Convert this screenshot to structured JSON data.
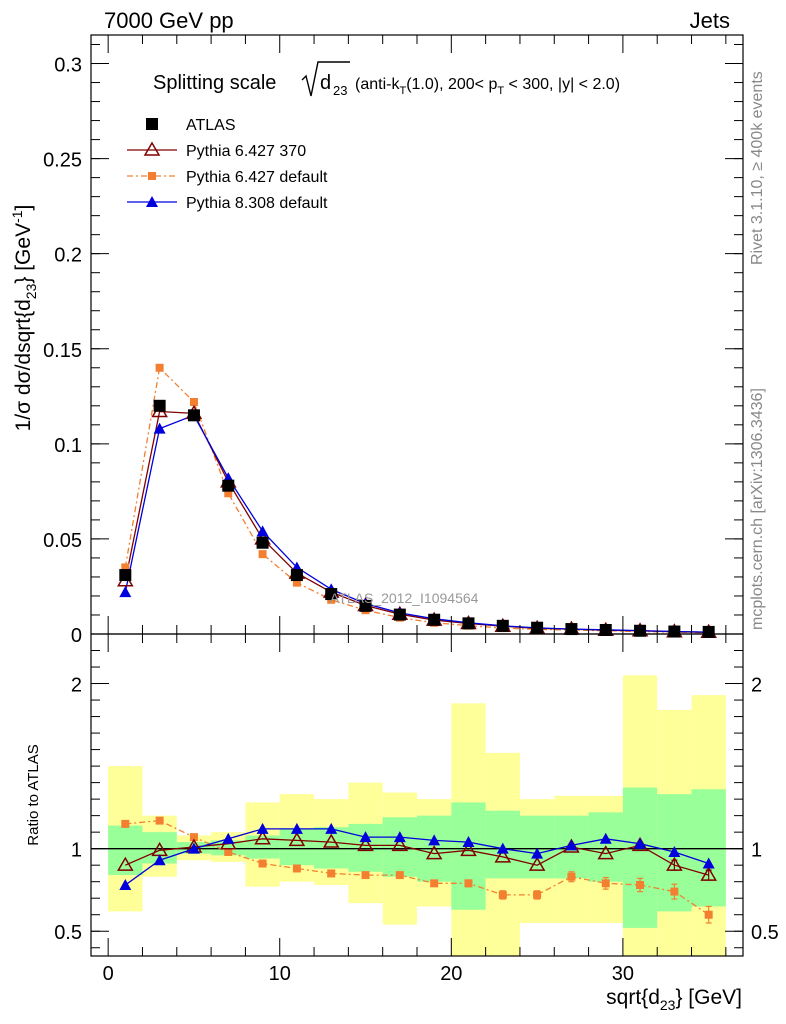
{
  "header": {
    "left": "7000 GeV pp",
    "right": "Jets"
  },
  "side_labels": {
    "rivet": "Rivet 3.1.10, ≥ 400k events",
    "mcplots": "mcplots.cern.ch [arXiv:1306.3436]"
  },
  "chart_data": [
    {
      "type": "scatter",
      "panel": "main",
      "title": "Splitting scale √d23 (anti-kT(1.0), 200< pT < 300, |y| < 2.0)",
      "title_prefix": "Splitting scale",
      "title_sqrt_arg": "d",
      "title_sqrt_sub": "23",
      "title_rest_1": "(anti-k",
      "title_rest_sub": "T",
      "title_rest_2": "(1.0), 200< p",
      "title_rest_sub2": "T",
      "title_rest_3": " < 300, |y| < 2.0)",
      "ylabel": "1/σ dσ/dsqrt{d23} [GeV⁻¹]",
      "ylabel_main": "1/σ dσ/dsqrt{d",
      "ylabel_sub": "23",
      "ylabel_end": "} [GeV",
      "ylabel_sup": "-1",
      "ylabel_close": "]",
      "watermark": "ATLAS_2012_I1094564",
      "xlim": [
        -1,
        37
      ],
      "ylim": [
        0,
        0.315
      ],
      "yticks": [
        0,
        0.05,
        0.1,
        0.15,
        0.2,
        0.25,
        0.3
      ],
      "ytick_labels": [
        "0",
        "0.05",
        "0.1",
        "0.15",
        "0.2",
        "0.25",
        "0.3"
      ],
      "x": [
        1,
        3,
        5,
        7,
        9,
        11,
        13,
        15,
        17,
        19,
        21,
        23,
        25,
        27,
        29,
        31,
        33,
        35
      ],
      "legend_position": "top-left",
      "series": [
        {
          "name": "ATLAS",
          "marker": "filled-square",
          "color": "#000000",
          "values": [
            0.031,
            0.12,
            0.115,
            0.078,
            0.048,
            0.031,
            0.021,
            0.0148,
            0.0102,
            0.0075,
            0.0056,
            0.0043,
            0.0033,
            0.0026,
            0.0021,
            0.0017,
            0.0013,
            0.0011
          ]
        },
        {
          "name": "Pythia 6.427 370",
          "marker": "open-triangle",
          "color": "#7f0000",
          "values": [
            0.028,
            0.117,
            0.116,
            0.08,
            0.05,
            0.032,
            0.022,
            0.015,
            0.0104,
            0.0073,
            0.0055,
            0.0041,
            0.003,
            0.0026,
            0.002,
            0.0017,
            0.0012,
            0.0009
          ]
        },
        {
          "name": "Pythia 6.427 default",
          "marker": "small-square",
          "color": "#f28030",
          "values": [
            0.035,
            0.14,
            0.122,
            0.074,
            0.042,
            0.027,
            0.018,
            0.0125,
            0.0086,
            0.0059,
            0.0044,
            0.0031,
            0.0024,
            0.0021,
            0.0017,
            0.0013,
            0.001,
            0.0007
          ]
        },
        {
          "name": "Pythia 8.308 default",
          "marker": "filled-triangle",
          "color": "#0000dd",
          "values": [
            0.022,
            0.108,
            0.115,
            0.082,
            0.054,
            0.035,
            0.0235,
            0.016,
            0.0111,
            0.008,
            0.0059,
            0.0043,
            0.0032,
            0.0026,
            0.0022,
            0.0018,
            0.0013,
            0.001
          ]
        }
      ]
    },
    {
      "type": "scatter",
      "panel": "ratio",
      "ylabel": "Ratio to ATLAS",
      "xlabel": "sqrt{d23} [GeV]",
      "xlabel_main": "sqrt{d",
      "xlabel_sub": "23",
      "xlabel_end": "} [GeV]",
      "xlim": [
        -1,
        37
      ],
      "ylim": [
        0.35,
        2.3
      ],
      "xticks": [
        0,
        10,
        20,
        30
      ],
      "xtick_labels": [
        "0",
        "10",
        "20",
        "30"
      ],
      "yticks": [
        0.5,
        1,
        2
      ],
      "ytick_labels": [
        "0.5",
        "1",
        "2"
      ],
      "bins": [
        {
          "lo": 0,
          "hi": 2,
          "green": [
            0.84,
            1.14
          ],
          "yellow": [
            0.62,
            1.5
          ]
        },
        {
          "lo": 2,
          "hi": 4,
          "green": [
            0.91,
            1.1
          ],
          "yellow": [
            0.83,
            1.2
          ]
        },
        {
          "lo": 4,
          "hi": 6,
          "green": [
            0.97,
            1.04
          ],
          "yellow": [
            0.93,
            1.08
          ]
        },
        {
          "lo": 6,
          "hi": 8,
          "green": [
            0.96,
            1.05
          ],
          "yellow": [
            0.92,
            1.1
          ]
        },
        {
          "lo": 8,
          "hi": 10,
          "green": [
            0.94,
            1.08
          ],
          "yellow": [
            0.77,
            1.28
          ]
        },
        {
          "lo": 10,
          "hi": 12,
          "green": [
            0.9,
            1.12
          ],
          "yellow": [
            0.8,
            1.33
          ]
        },
        {
          "lo": 12,
          "hi": 14,
          "green": [
            0.88,
            1.13
          ],
          "yellow": [
            0.78,
            1.3
          ]
        },
        {
          "lo": 14,
          "hi": 16,
          "green": [
            0.86,
            1.15
          ],
          "yellow": [
            0.67,
            1.4
          ]
        },
        {
          "lo": 16,
          "hi": 18,
          "green": [
            0.83,
            1.19
          ],
          "yellow": [
            0.54,
            1.34
          ]
        },
        {
          "lo": 18,
          "hi": 20,
          "green": [
            0.8,
            1.2
          ],
          "yellow": [
            0.65,
            1.3
          ]
        },
        {
          "lo": 20,
          "hi": 22,
          "green": [
            0.63,
            1.28
          ],
          "yellow": [
            0.35,
            1.88
          ]
        },
        {
          "lo": 22,
          "hi": 24,
          "green": [
            0.82,
            1.23
          ],
          "yellow": [
            0.35,
            1.58
          ]
        },
        {
          "lo": 24,
          "hi": 26,
          "green": [
            0.82,
            1.2
          ],
          "yellow": [
            0.55,
            1.3
          ]
        },
        {
          "lo": 26,
          "hi": 28,
          "green": [
            0.82,
            1.2
          ],
          "yellow": [
            0.55,
            1.32
          ]
        },
        {
          "lo": 28,
          "hi": 30,
          "green": [
            0.8,
            1.22
          ],
          "yellow": [
            0.55,
            1.32
          ]
        },
        {
          "lo": 30,
          "hi": 32,
          "green": [
            0.52,
            1.37
          ],
          "yellow": [
            0.35,
            2.05
          ]
        },
        {
          "lo": 32,
          "hi": 34,
          "green": [
            0.62,
            1.33
          ],
          "yellow": [
            0.35,
            1.84
          ]
        },
        {
          "lo": 34,
          "hi": 36,
          "green": [
            0.65,
            1.36
          ],
          "yellow": [
            0.35,
            1.93
          ]
        }
      ],
      "x": [
        1,
        3,
        5,
        7,
        9,
        11,
        13,
        15,
        17,
        19,
        21,
        23,
        25,
        27,
        29,
        31,
        33,
        35
      ],
      "series": [
        {
          "name": "Pythia 6.427 370",
          "marker": "open-triangle",
          "color": "#7f0000",
          "values": [
            0.9,
            0.99,
            1.01,
            1.03,
            1.06,
            1.05,
            1.04,
            1.02,
            1.02,
            0.97,
            0.99,
            0.95,
            0.9,
            1.01,
            0.97,
            1.02,
            0.9,
            0.84
          ],
          "errors": [
            0,
            0,
            0,
            0,
            0,
            0,
            0,
            0,
            0,
            0,
            0,
            0,
            0,
            0,
            0,
            0,
            0.03,
            0.03
          ]
        },
        {
          "name": "Pythia 6.427 default",
          "marker": "small-square",
          "color": "#f28030",
          "values": [
            1.15,
            1.17,
            1.07,
            0.98,
            0.91,
            0.88,
            0.85,
            0.84,
            0.84,
            0.79,
            0.79,
            0.72,
            0.72,
            0.83,
            0.79,
            0.78,
            0.74,
            0.6
          ],
          "errors": [
            0.015,
            0.015,
            0.012,
            0.012,
            0.012,
            0.012,
            0.012,
            0.012,
            0.015,
            0.015,
            0.02,
            0.025,
            0.025,
            0.03,
            0.035,
            0.04,
            0.045,
            0.05
          ]
        },
        {
          "name": "Pythia 8.308 default",
          "marker": "filled-triangle",
          "color": "#0000dd",
          "values": [
            0.78,
            0.93,
            1.0,
            1.06,
            1.12,
            1.12,
            1.12,
            1.07,
            1.07,
            1.05,
            1.04,
            1.0,
            0.97,
            1.02,
            1.06,
            1.03,
            0.98,
            0.91
          ],
          "errors": [
            0,
            0,
            0,
            0,
            0,
            0,
            0,
            0,
            0,
            0,
            0,
            0,
            0,
            0,
            0,
            0,
            0,
            0
          ]
        }
      ]
    }
  ]
}
